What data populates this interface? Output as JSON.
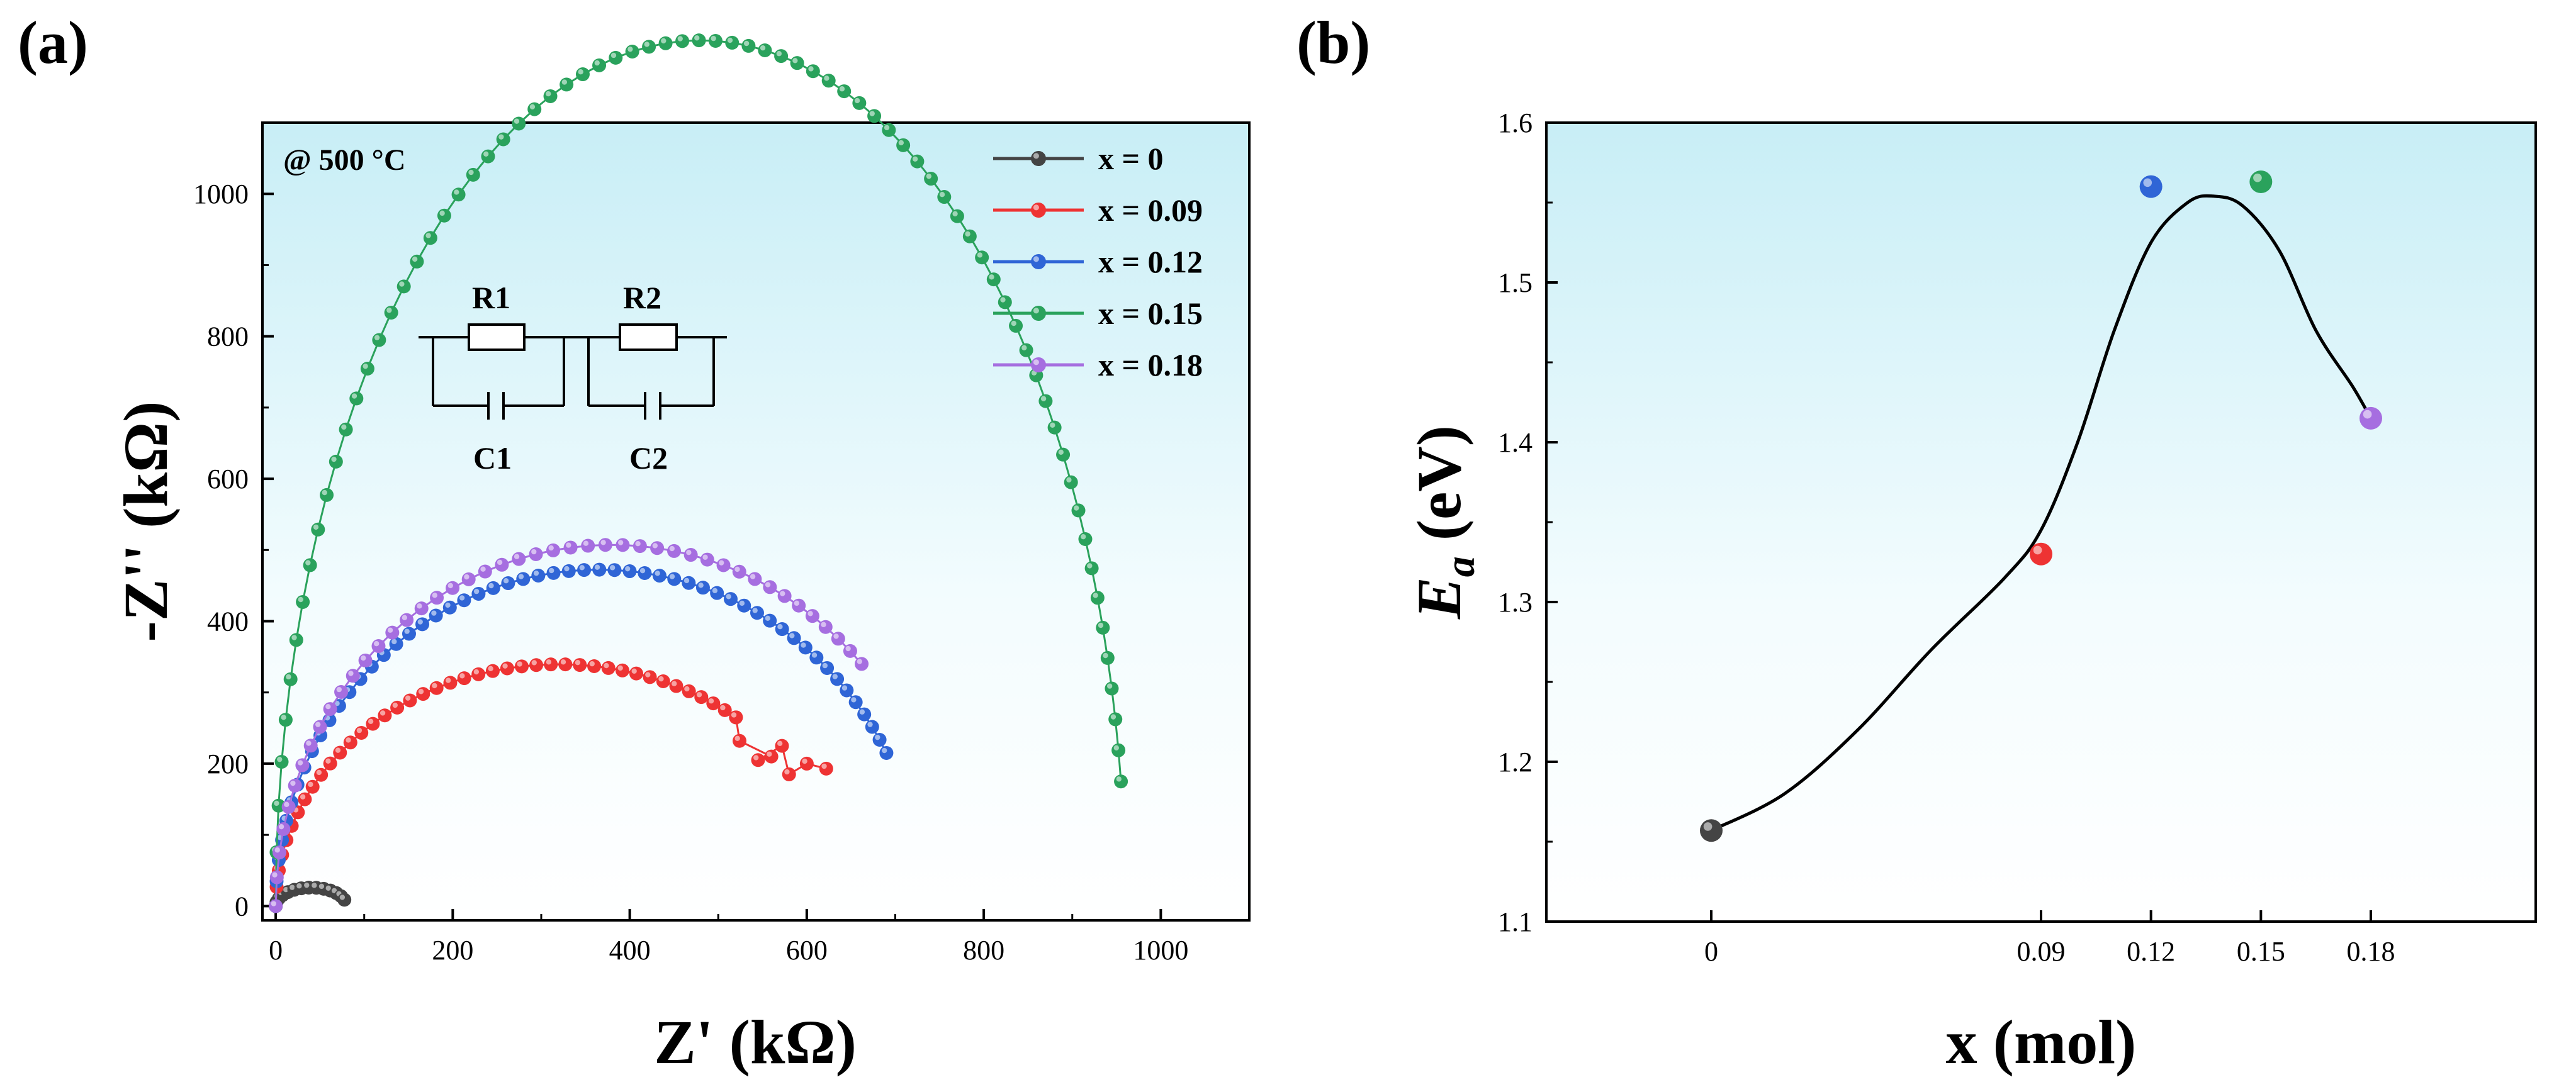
{
  "chart_data": [
    {
      "panel": "(a)",
      "type": "scatter",
      "title": "",
      "annotation": "@ 500 °C",
      "xlabel": "Z' (kΩ)",
      "ylabel": "-Z'' (kΩ)",
      "xlim": [
        -15,
        1100
      ],
      "ylim": [
        -20,
        1100
      ],
      "xticks": [
        0,
        200,
        400,
        600,
        800,
        1000
      ],
      "yticks": [
        0,
        200,
        400,
        600,
        800,
        1000
      ],
      "legend_position": "top-right",
      "circuit": {
        "resistors": [
          "R1",
          "R2"
        ],
        "capacitors": [
          "C1",
          "C2"
        ]
      },
      "series": [
        {
          "name": "x = 0",
          "color": "#444444",
          "R": 80,
          "points": 14
        },
        {
          "name": "x = 0.09",
          "color": "#ee3333",
          "R": 640,
          "end_x": 622,
          "end_y": 193,
          "points": 50,
          "tail": [
            [
              520,
              265
            ],
            [
              524,
              232
            ],
            [
              560,
              210
            ],
            [
              545,
              205
            ],
            [
              572,
              225
            ],
            [
              580,
              185
            ],
            [
              600,
              200
            ],
            [
              622,
              193
            ]
          ]
        },
        {
          "name": "x = 0.12",
          "color": "#2f65d6",
          "R": 730,
          "end_x": 690,
          "end_y": 215,
          "points": 55
        },
        {
          "name": "x = 0.15",
          "color": "#2aa25c",
          "R": 960,
          "end_x": 955,
          "end_y": 175,
          "points": 75
        },
        {
          "name": "x = 0.18",
          "color": "#a66ee0",
          "R": 760,
          "end_x": 662,
          "end_y": 340,
          "points": 45
        }
      ]
    },
    {
      "panel": "(b)",
      "type": "scatter",
      "title": "",
      "xlabel": "x (mol)",
      "ylabel_main": "E",
      "ylabel_sub": "a",
      "ylabel_unit": " (eV)",
      "xlim": [
        -0.045,
        0.225
      ],
      "ylim": [
        1.1,
        1.6
      ],
      "xtick_values": [
        0,
        0.09,
        0.12,
        0.15,
        0.18
      ],
      "xtick_labels": [
        "0",
        "0.09",
        "0.12",
        "0.15",
        "0.18"
      ],
      "yticks": [
        1.1,
        1.2,
        1.3,
        1.4,
        1.5,
        1.6
      ],
      "ytick_labels": [
        "1.1",
        "1.2",
        "1.3",
        "1.4",
        "1.5",
        "1.6"
      ],
      "x": [
        0,
        0.09,
        0.12,
        0.15,
        0.18
      ],
      "y": [
        1.157,
        1.33,
        1.56,
        1.563,
        1.415
      ],
      "colors": [
        "#444444",
        "#ee3333",
        "#2f65d6",
        "#2aa25c",
        "#a66ee0"
      ],
      "fit_curve": {
        "x": [
          0,
          0.02,
          0.04,
          0.06,
          0.08,
          0.09,
          0.1,
          0.11,
          0.12,
          0.13,
          0.137,
          0.145,
          0.155,
          0.165,
          0.175,
          0.18
        ],
        "y": [
          1.157,
          1.18,
          1.22,
          1.27,
          1.315,
          1.345,
          1.4,
          1.47,
          1.525,
          1.55,
          1.554,
          1.548,
          1.52,
          1.47,
          1.435,
          1.415
        ]
      }
    }
  ]
}
